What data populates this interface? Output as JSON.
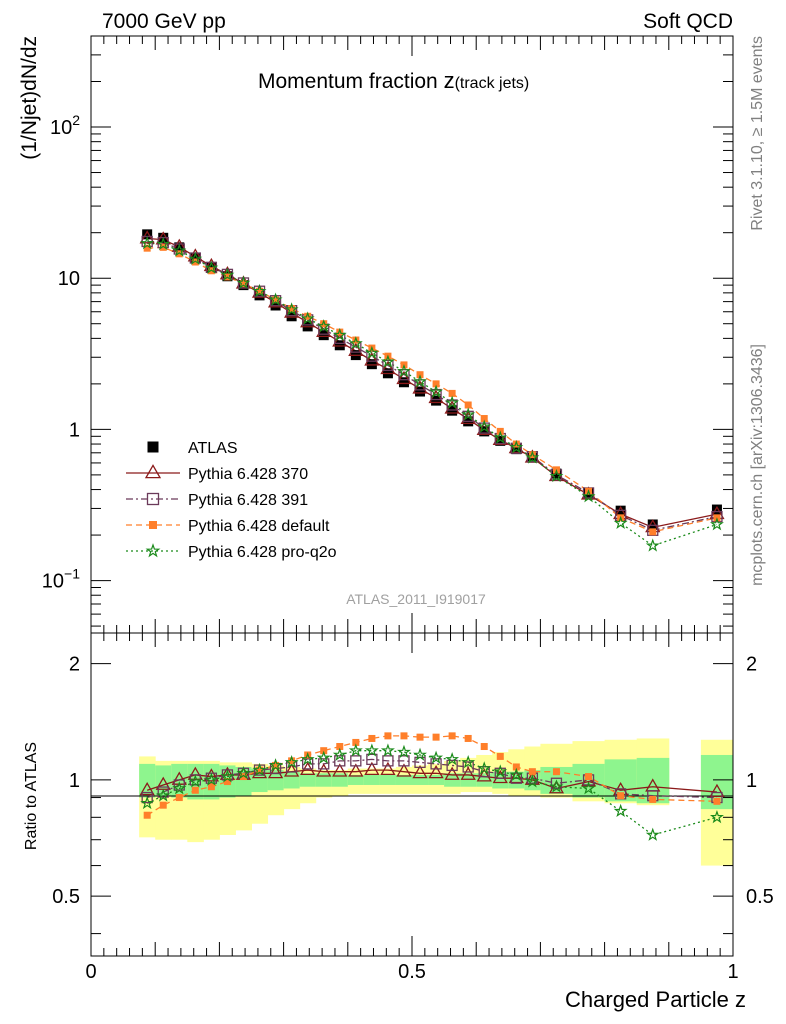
{
  "header": {
    "energy_label": "7000 GeV pp",
    "category_label": "Soft QCD",
    "title_main": "Momentum fraction ",
    "title_var": "z",
    "title_sub": "(track jets)",
    "ylabel": "(1/Njet)dN/dz",
    "ratio_ylabel": "Ratio to ATLAS",
    "xlabel": "Charged Particle z",
    "watermark": "ATLAS_2011_I919017",
    "side_text_top": "Rivet 3.1.10, ≥ 1.5M events",
    "side_text_bottom": "mcplots.cern.ch [arXiv:1306.3436]"
  },
  "axes": {
    "main_y_ticks": [
      {
        "value": 100,
        "label": "10",
        "exp": "2"
      },
      {
        "value": 10,
        "label": "10",
        "exp": ""
      },
      {
        "value": 1,
        "label": "1",
        "exp": ""
      },
      {
        "value": 0.1,
        "label": "10",
        "exp": "−1"
      }
    ],
    "ratio_y_ticks": [
      {
        "value": 2,
        "label": "2"
      },
      {
        "value": 1,
        "label": "1"
      },
      {
        "value": 0.5,
        "label": "0.5"
      }
    ],
    "x_ticks": [
      {
        "value": 0,
        "label": "0"
      },
      {
        "value": 0.5,
        "label": "0.5"
      },
      {
        "value": 1,
        "label": "1"
      }
    ]
  },
  "colors": {
    "atlas": "#000000",
    "p370": "#8b1a1a",
    "p391": "#6b3a5a",
    "pdefault": "#ff7f2a",
    "pq2o": "#1a8a1a",
    "band_inner": "#8ef58e",
    "band_outer": "#ffff99"
  },
  "chart_data": [
    {
      "type": "scatter",
      "title": "Momentum fraction z(track jets)",
      "xlabel": "Charged Particle z",
      "ylabel": "(1/Njet)dN/dz",
      "xlim": [
        0,
        1
      ],
      "ylim": [
        0.045,
        400
      ],
      "yscale": "log",
      "x": [
        0.0875,
        0.1125,
        0.1375,
        0.1625,
        0.1875,
        0.2125,
        0.2375,
        0.2625,
        0.2875,
        0.3125,
        0.3375,
        0.3625,
        0.3875,
        0.4125,
        0.4375,
        0.4625,
        0.4875,
        0.5125,
        0.5375,
        0.5625,
        0.5875,
        0.6125,
        0.6375,
        0.6625,
        0.6875,
        0.725,
        0.775,
        0.825,
        0.875,
        0.975
      ],
      "series": [
        {
          "name": "ATLAS",
          "values": [
            19.5,
            18.5,
            16.0,
            13.5,
            11.7,
            10.3,
            9.0,
            7.7,
            6.6,
            5.6,
            4.8,
            4.2,
            3.6,
            3.1,
            2.7,
            2.35,
            2.05,
            1.78,
            1.55,
            1.33,
            1.13,
            0.97,
            0.84,
            0.74,
            0.65,
            0.51,
            0.38,
            0.29,
            0.235,
            0.295
          ]
        },
        {
          "name": "Pythia 6.428 370",
          "values": [
            18.3,
            18.0,
            16.1,
            13.9,
            12.0,
            10.6,
            9.2,
            8.0,
            6.9,
            5.9,
            5.1,
            4.4,
            3.8,
            3.3,
            2.85,
            2.5,
            2.15,
            1.86,
            1.61,
            1.37,
            1.17,
            0.99,
            0.85,
            0.75,
            0.65,
            0.49,
            0.37,
            0.275,
            0.225,
            0.275
          ]
        },
        {
          "name": "Pythia 6.428 391",
          "values": [
            17.5,
            17.2,
            15.6,
            13.6,
            11.8,
            10.6,
            9.3,
            8.2,
            7.1,
            6.1,
            5.3,
            4.6,
            4.0,
            3.5,
            3.05,
            2.65,
            2.3,
            1.97,
            1.7,
            1.45,
            1.22,
            1.02,
            0.87,
            0.75,
            0.66,
            0.5,
            0.38,
            0.27,
            0.215,
            0.265
          ]
        },
        {
          "name": "Pythia 6.428 default",
          "values": [
            15.8,
            16.0,
            14.5,
            12.8,
            11.2,
            10.2,
            9.2,
            8.2,
            7.2,
            6.3,
            5.6,
            5.0,
            4.4,
            3.9,
            3.45,
            3.05,
            2.67,
            2.3,
            2.0,
            1.73,
            1.45,
            1.18,
            0.97,
            0.8,
            0.68,
            0.54,
            0.39,
            0.26,
            0.21,
            0.26
          ]
        },
        {
          "name": "Pythia 6.428 pro-q2o",
          "values": [
            17.0,
            16.8,
            15.2,
            13.4,
            11.7,
            10.5,
            9.3,
            8.2,
            7.2,
            6.2,
            5.4,
            4.8,
            4.2,
            3.7,
            3.2,
            2.8,
            2.42,
            2.07,
            1.77,
            1.5,
            1.25,
            1.04,
            0.88,
            0.76,
            0.65,
            0.49,
            0.36,
            0.24,
            0.17,
            0.235
          ]
        }
      ]
    },
    {
      "type": "scatter",
      "ylabel": "Ratio to ATLAS",
      "xlabel": "Charged Particle z",
      "xlim": [
        0,
        1
      ],
      "ylim": [
        0.35,
        2.4
      ],
      "yscale": "log",
      "x": [
        0.0875,
        0.1125,
        0.1375,
        0.1625,
        0.1875,
        0.2125,
        0.2375,
        0.2625,
        0.2875,
        0.3125,
        0.3375,
        0.3625,
        0.3875,
        0.4125,
        0.4375,
        0.4625,
        0.4875,
        0.5125,
        0.5375,
        0.5625,
        0.5875,
        0.6125,
        0.6375,
        0.6625,
        0.6875,
        0.725,
        0.775,
        0.825,
        0.875,
        0.975
      ],
      "series": [
        {
          "name": "Pythia 6.428 370",
          "values": [
            0.94,
            0.97,
            1.0,
            1.03,
            1.02,
            1.03,
            1.03,
            1.04,
            1.04,
            1.05,
            1.06,
            1.05,
            1.05,
            1.05,
            1.06,
            1.06,
            1.05,
            1.04,
            1.04,
            1.03,
            1.03,
            1.02,
            1.01,
            1.01,
            1.0,
            0.95,
            0.99,
            0.94,
            0.96,
            0.93
          ]
        },
        {
          "name": "Pythia 6.428 391",
          "values": [
            0.9,
            0.93,
            0.97,
            1.0,
            1.01,
            1.03,
            1.04,
            1.06,
            1.07,
            1.08,
            1.1,
            1.1,
            1.12,
            1.12,
            1.13,
            1.12,
            1.12,
            1.11,
            1.1,
            1.09,
            1.08,
            1.05,
            1.04,
            1.01,
            1.01,
            0.98,
            1.0,
            0.92,
            0.91,
            0.9
          ]
        },
        {
          "name": "Pythia 6.428 default",
          "values": [
            0.81,
            0.86,
            0.9,
            0.94,
            0.96,
            0.99,
            1.02,
            1.06,
            1.09,
            1.12,
            1.16,
            1.19,
            1.22,
            1.25,
            1.28,
            1.3,
            1.3,
            1.29,
            1.29,
            1.3,
            1.28,
            1.22,
            1.15,
            1.08,
            1.05,
            1.05,
            1.02,
            0.91,
            0.89,
            0.88
          ]
        },
        {
          "name": "Pythia 6.428 pro-q2o",
          "values": [
            0.87,
            0.91,
            0.95,
            0.99,
            1.0,
            1.02,
            1.04,
            1.06,
            1.09,
            1.11,
            1.13,
            1.14,
            1.16,
            1.19,
            1.19,
            1.19,
            1.18,
            1.16,
            1.14,
            1.13,
            1.11,
            1.07,
            1.05,
            1.03,
            0.99,
            0.96,
            0.95,
            0.83,
            0.72,
            0.8
          ]
        }
      ],
      "bands": {
        "x_edges": [
          [
            0.075,
            0.1
          ],
          [
            0.1,
            0.125
          ],
          [
            0.125,
            0.15
          ],
          [
            0.15,
            0.175
          ],
          [
            0.175,
            0.2
          ],
          [
            0.2,
            0.225
          ],
          [
            0.225,
            0.25
          ],
          [
            0.25,
            0.275
          ],
          [
            0.275,
            0.3
          ],
          [
            0.3,
            0.325
          ],
          [
            0.325,
            0.35
          ],
          [
            0.35,
            0.375
          ],
          [
            0.375,
            0.4
          ],
          [
            0.4,
            0.425
          ],
          [
            0.425,
            0.45
          ],
          [
            0.45,
            0.475
          ],
          [
            0.475,
            0.5
          ],
          [
            0.5,
            0.525
          ],
          [
            0.525,
            0.55
          ],
          [
            0.55,
            0.575
          ],
          [
            0.575,
            0.6
          ],
          [
            0.6,
            0.625
          ],
          [
            0.625,
            0.65
          ],
          [
            0.65,
            0.675
          ],
          [
            0.675,
            0.7
          ],
          [
            0.7,
            0.75
          ],
          [
            0.75,
            0.8
          ],
          [
            0.8,
            0.85
          ],
          [
            0.85,
            0.9
          ],
          [
            0.95,
            1.0
          ]
        ],
        "stat": [
          [
            0.9,
            1.1
          ],
          [
            0.91,
            1.09
          ],
          [
            0.9,
            1.1
          ],
          [
            0.89,
            1.1
          ],
          [
            0.89,
            1.1
          ],
          [
            0.9,
            1.09
          ],
          [
            0.91,
            1.08
          ],
          [
            0.93,
            1.07
          ],
          [
            0.94,
            1.06
          ],
          [
            0.95,
            1.05
          ],
          [
            0.96,
            1.04
          ],
          [
            0.96,
            1.04
          ],
          [
            0.96,
            1.04
          ],
          [
            0.97,
            1.03
          ],
          [
            0.97,
            1.03
          ],
          [
            0.97,
            1.03
          ],
          [
            0.97,
            1.03
          ],
          [
            0.97,
            1.03
          ],
          [
            0.97,
            1.03
          ],
          [
            0.96,
            1.04
          ],
          [
            0.96,
            1.04
          ],
          [
            0.96,
            1.04
          ],
          [
            0.95,
            1.05
          ],
          [
            0.95,
            1.05
          ],
          [
            0.94,
            1.06
          ],
          [
            0.92,
            1.08
          ],
          [
            0.9,
            1.1
          ],
          [
            0.88,
            1.13
          ],
          [
            0.87,
            1.14
          ],
          [
            0.84,
            1.16
          ]
        ],
        "syst": [
          [
            0.71,
            1.15
          ],
          [
            0.7,
            1.12
          ],
          [
            0.7,
            1.12
          ],
          [
            0.69,
            1.12
          ],
          [
            0.7,
            1.12
          ],
          [
            0.72,
            1.11
          ],
          [
            0.74,
            1.11
          ],
          [
            0.77,
            1.1
          ],
          [
            0.81,
            1.09
          ],
          [
            0.84,
            1.08
          ],
          [
            0.87,
            1.07
          ],
          [
            0.9,
            1.06
          ],
          [
            0.91,
            1.06
          ],
          [
            0.92,
            1.07
          ],
          [
            0.92,
            1.07
          ],
          [
            0.92,
            1.07
          ],
          [
            0.92,
            1.08
          ],
          [
            0.92,
            1.09
          ],
          [
            0.92,
            1.1
          ],
          [
            0.92,
            1.12
          ],
          [
            0.93,
            1.14
          ],
          [
            0.93,
            1.16
          ],
          [
            0.92,
            1.18
          ],
          [
            0.91,
            1.2
          ],
          [
            0.91,
            1.22
          ],
          [
            0.9,
            1.24
          ],
          [
            0.88,
            1.26
          ],
          [
            0.87,
            1.27
          ],
          [
            0.86,
            1.28
          ],
          [
            0.6,
            1.27
          ]
        ]
      }
    }
  ],
  "legend": [
    {
      "label": "ATLAS",
      "key": "atlas",
      "marker": "square-filled",
      "line": "none"
    },
    {
      "label": "Pythia 6.428 370",
      "key": "p370",
      "marker": "triangle-open",
      "line": "solid"
    },
    {
      "label": "Pythia 6.428 391",
      "key": "p391",
      "marker": "square-open",
      "line": "dashdot"
    },
    {
      "label": "Pythia 6.428 default",
      "key": "pdefault",
      "marker": "square-filled-small",
      "line": "dashed"
    },
    {
      "label": "Pythia 6.428 pro-q2o",
      "key": "pq2o",
      "marker": "star-open",
      "line": "dotted"
    }
  ]
}
